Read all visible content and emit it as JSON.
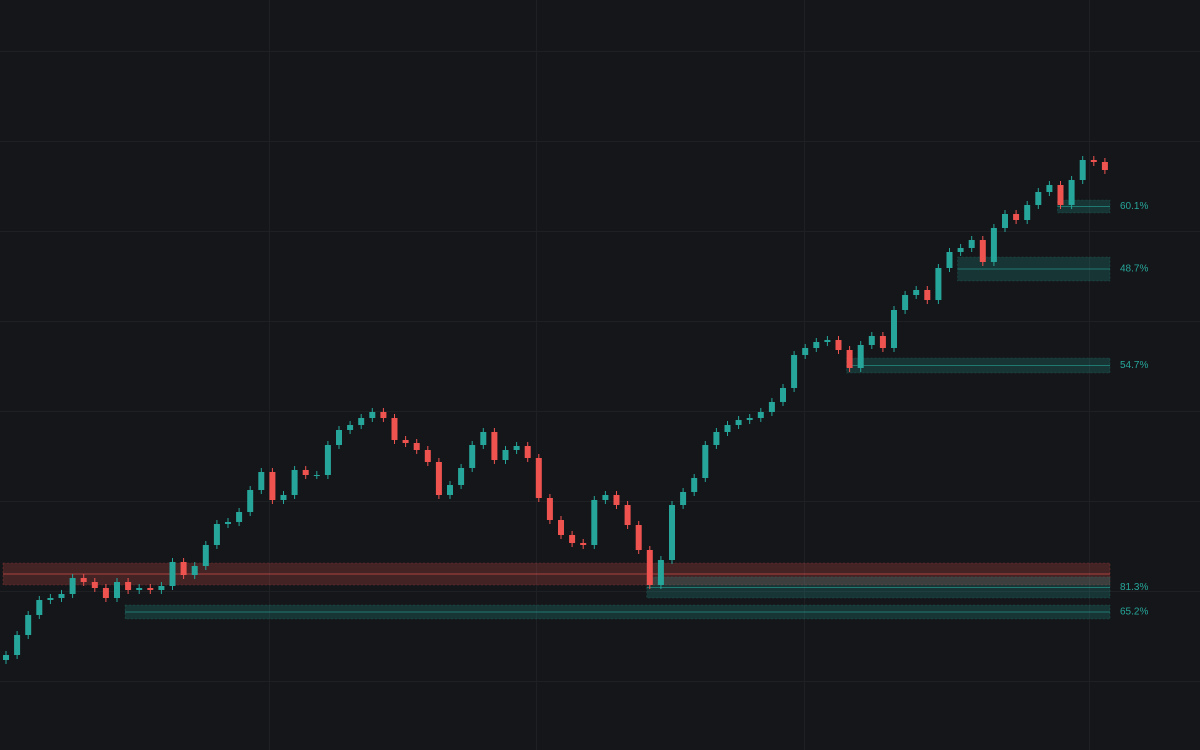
{
  "chart_data": {
    "type": "candlestick",
    "ylim": [
      0,
      750
    ],
    "up_color": "#26a69a",
    "down_color": "#ef5350",
    "open": [
      90,
      95,
      115,
      135,
      150,
      152,
      156,
      172,
      168,
      162,
      152,
      168,
      160,
      162,
      160,
      164,
      188,
      175,
      184,
      205,
      226,
      228,
      238,
      260,
      278,
      250,
      255,
      280,
      275,
      275,
      305,
      320,
      325,
      332,
      338,
      332,
      310,
      307,
      300,
      288,
      255,
      265,
      282,
      305,
      318,
      290,
      300,
      304,
      292,
      252,
      230,
      215,
      207,
      205,
      250,
      255,
      245,
      225,
      200,
      165,
      190,
      245,
      258,
      272,
      305,
      318,
      325,
      330,
      332,
      338,
      348,
      362,
      395,
      402,
      408,
      410,
      400,
      382,
      405,
      414,
      402,
      440,
      455,
      460,
      450,
      482,
      498,
      502,
      510,
      488,
      522,
      536,
      530,
      545,
      558,
      565,
      545,
      570,
      590,
      588
    ],
    "high": [
      99,
      119,
      139,
      154,
      156,
      160,
      176,
      176,
      172,
      166,
      172,
      172,
      166,
      166,
      168,
      192,
      192,
      188,
      209,
      230,
      232,
      242,
      264,
      282,
      282,
      259,
      284,
      284,
      279,
      309,
      324,
      329,
      336,
      342,
      342,
      336,
      314,
      311,
      304,
      292,
      269,
      286,
      309,
      322,
      322,
      304,
      308,
      308,
      296,
      256,
      234,
      219,
      211,
      254,
      259,
      259,
      249,
      229,
      204,
      194,
      249,
      262,
      276,
      309,
      322,
      329,
      334,
      336,
      342,
      352,
      366,
      399,
      406,
      412,
      414,
      414,
      404,
      409,
      418,
      418,
      444,
      459,
      464,
      464,
      486,
      502,
      506,
      514,
      514,
      526,
      540,
      540,
      549,
      562,
      569,
      569,
      574,
      594,
      594,
      592
    ],
    "low": [
      86,
      91,
      111,
      131,
      146,
      148,
      152,
      164,
      158,
      148,
      148,
      156,
      156,
      156,
      156,
      160,
      171,
      171,
      180,
      201,
      222,
      224,
      234,
      256,
      246,
      246,
      251,
      271,
      271,
      271,
      301,
      316,
      321,
      328,
      328,
      306,
      303,
      296,
      284,
      251,
      251,
      261,
      278,
      301,
      286,
      286,
      296,
      288,
      248,
      226,
      211,
      203,
      201,
      201,
      246,
      241,
      221,
      196,
      161,
      161,
      186,
      241,
      254,
      268,
      301,
      314,
      321,
      326,
      328,
      334,
      344,
      358,
      391,
      398,
      404,
      396,
      378,
      378,
      401,
      398,
      398,
      436,
      451,
      446,
      446,
      478,
      494,
      498,
      484,
      484,
      518,
      526,
      526,
      541,
      554,
      541,
      541,
      566,
      584,
      576
    ],
    "close": [
      95,
      115,
      135,
      150,
      152,
      156,
      172,
      168,
      162,
      152,
      168,
      160,
      162,
      160,
      164,
      188,
      175,
      184,
      205,
      226,
      228,
      238,
      260,
      278,
      250,
      255,
      280,
      275,
      275,
      305,
      320,
      325,
      332,
      338,
      332,
      310,
      307,
      300,
      288,
      255,
      265,
      282,
      305,
      318,
      290,
      300,
      304,
      292,
      252,
      230,
      215,
      207,
      205,
      250,
      255,
      245,
      225,
      200,
      165,
      190,
      245,
      258,
      272,
      305,
      318,
      325,
      330,
      332,
      338,
      348,
      362,
      395,
      402,
      408,
      410,
      400,
      382,
      405,
      414,
      402,
      440,
      455,
      460,
      450,
      482,
      498,
      502,
      510,
      488,
      522,
      536,
      530,
      545,
      558,
      565,
      545,
      570,
      590,
      588,
      580
    ],
    "zones": [
      {
        "top": 187,
        "bottom": 165,
        "from": 0,
        "color": "#ef5350"
      },
      {
        "top": 145,
        "bottom": 131,
        "from": 11,
        "color": "#26a69a",
        "label": "65.2%"
      },
      {
        "top": 173,
        "bottom": 152,
        "from": 58,
        "color": "#26a69a",
        "label": "81.3%"
      },
      {
        "top": 392,
        "bottom": 377,
        "from": 76,
        "color": "#26a69a",
        "label": "54.7%"
      },
      {
        "top": 493,
        "bottom": 469,
        "from": 86,
        "color": "#26a69a",
        "label": "48.7%"
      },
      {
        "top": 550,
        "bottom": 537,
        "from": 95,
        "color": "#26a69a",
        "label": "60.1%"
      }
    ]
  }
}
